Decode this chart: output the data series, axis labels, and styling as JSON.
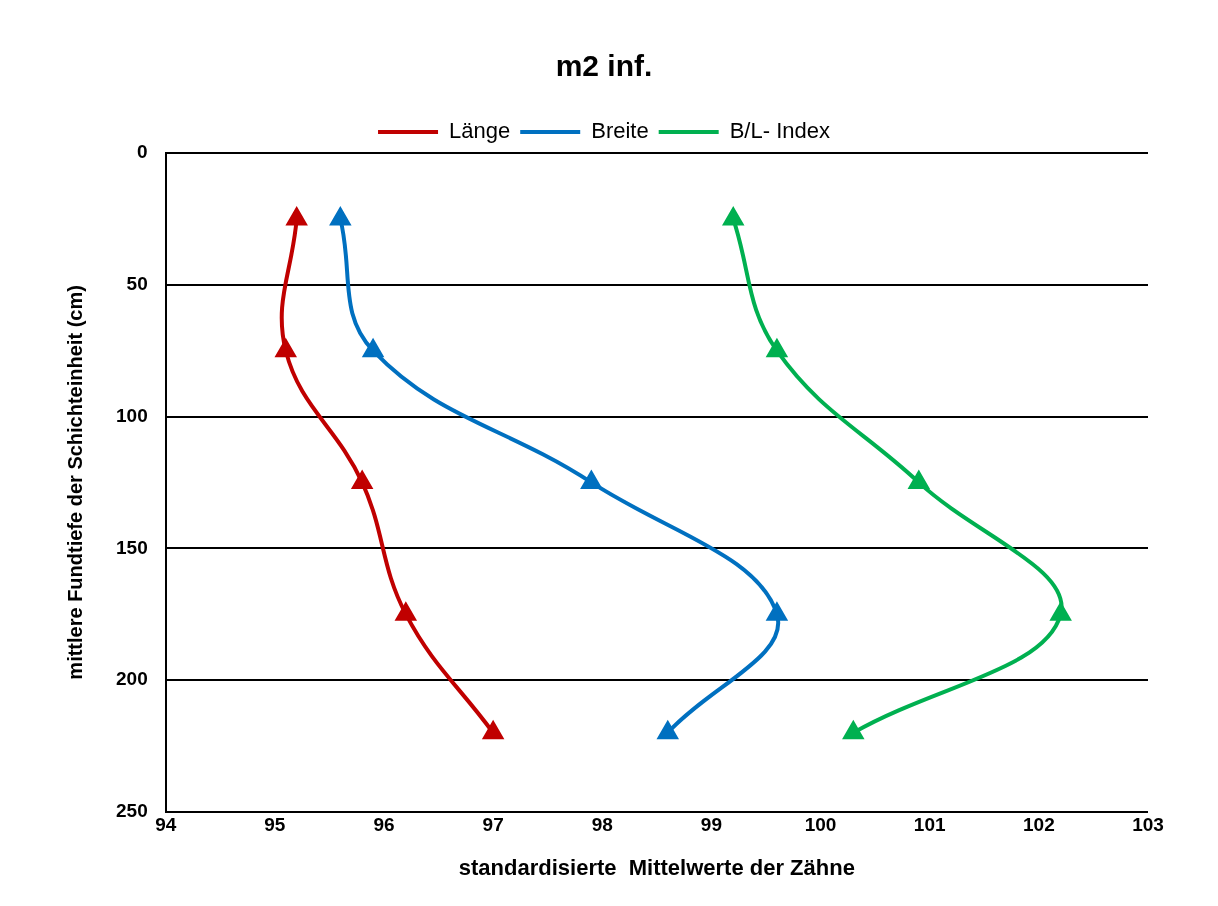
{
  "chart_data": {
    "type": "line",
    "title": "m2 inf.",
    "xlabel": "standardisierte  Mittelwerte der Zähne",
    "ylabel": "mittlere Fundtiefe der Schichteinheit (cm)",
    "series": [
      {
        "name": "Länge",
        "color": "#c00000",
        "x": [
          95.2,
          95.1,
          95.8,
          96.2,
          97.0
        ],
        "values": [
          25,
          75,
          125,
          175,
          220
        ]
      },
      {
        "name": "Breite",
        "color": "#0070c0",
        "x": [
          95.6,
          95.9,
          97.9,
          99.6,
          98.6
        ],
        "values": [
          25,
          75,
          125,
          175,
          220
        ]
      },
      {
        "name": "B/L- Index",
        "color": "#00b050",
        "x": [
          99.2,
          99.6,
          100.9,
          102.2,
          100.3
        ],
        "values": [
          25,
          75,
          125,
          175,
          220
        ]
      }
    ],
    "xlim": [
      94,
      103
    ],
    "xticks": [
      94,
      95,
      96,
      97,
      98,
      99,
      100,
      101,
      102,
      103
    ],
    "ylim": [
      250,
      0
    ],
    "yticks": [
      0,
      50,
      100,
      150,
      200,
      250
    ],
    "grid": "y",
    "legend": "top",
    "marker": "triangle",
    "line_style": "solid"
  }
}
